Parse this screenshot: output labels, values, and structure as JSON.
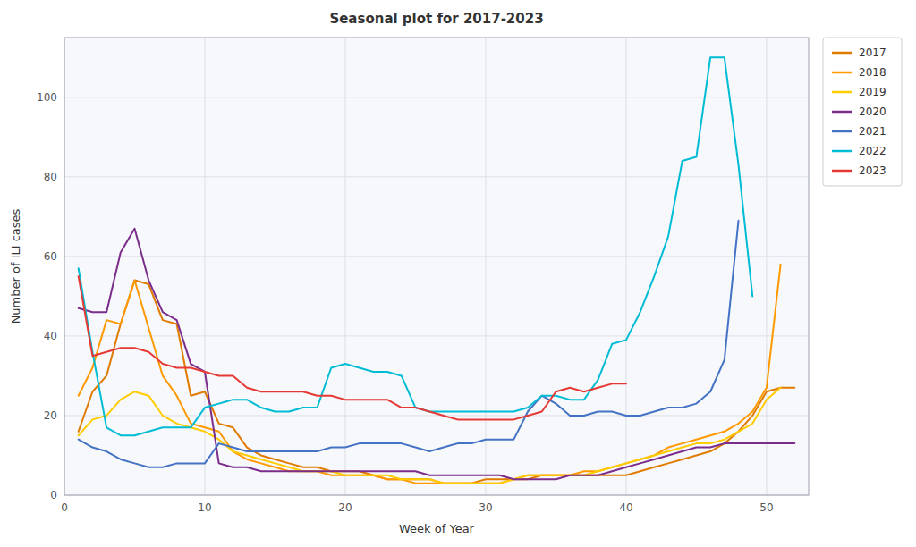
{
  "chart_data": {
    "type": "line",
    "title": "Seasonal plot for 2017-2023",
    "xlabel": "Week of Year",
    "ylabel": "Number of ILI cases",
    "xlim": [
      0,
      53
    ],
    "ylim": [
      0,
      115
    ],
    "xticks": [
      0,
      10,
      20,
      30,
      40,
      50
    ],
    "yticks": [
      0,
      20,
      40,
      60,
      80,
      100
    ],
    "grid": true,
    "legend": "upper right",
    "series": [
      {
        "name": "2017",
        "color": "#e07b00",
        "x": [
          1,
          2,
          3,
          4,
          5,
          6,
          7,
          8,
          9,
          10,
          11,
          12,
          13,
          14,
          15,
          16,
          17,
          18,
          19,
          20,
          21,
          22,
          23,
          24,
          25,
          26,
          27,
          28,
          29,
          30,
          31,
          32,
          33,
          34,
          35,
          36,
          37,
          38,
          39,
          40,
          41,
          42,
          43,
          44,
          45,
          46,
          47,
          48,
          49,
          50,
          51,
          52
        ],
        "values": [
          16,
          26,
          30,
          43,
          54,
          53,
          44,
          43,
          25,
          26,
          18,
          17,
          12,
          10,
          9,
          8,
          7,
          7,
          6,
          6,
          6,
          5,
          4,
          4,
          4,
          4,
          3,
          3,
          3,
          4,
          4,
          4,
          4,
          5,
          5,
          5,
          5,
          5,
          5,
          5,
          6,
          7,
          8,
          9,
          10,
          11,
          13,
          16,
          20,
          26,
          27,
          27
        ]
      },
      {
        "name": "2018",
        "color": "#ff9900",
        "x": [
          1,
          2,
          3,
          4,
          5,
          6,
          7,
          8,
          9,
          10,
          11,
          12,
          13,
          14,
          15,
          16,
          17,
          18,
          19,
          20,
          21,
          22,
          23,
          24,
          25,
          26,
          27,
          28,
          29,
          30,
          31,
          32,
          33,
          34,
          35,
          36,
          37,
          38,
          39,
          40,
          41,
          42,
          43,
          44,
          45,
          46,
          47,
          48,
          49,
          50,
          51
        ],
        "values": [
          25,
          32,
          44,
          43,
          54,
          42,
          30,
          25,
          18,
          17,
          16,
          11,
          9,
          8,
          7,
          6,
          6,
          6,
          5,
          5,
          5,
          5,
          4,
          4,
          3,
          3,
          3,
          3,
          3,
          3,
          3,
          4,
          5,
          5,
          5,
          5,
          6,
          6,
          7,
          8,
          9,
          10,
          12,
          13,
          14,
          15,
          16,
          18,
          21,
          27,
          58
        ]
      },
      {
        "name": "2019",
        "color": "#ffcc00",
        "x": [
          1,
          2,
          3,
          4,
          5,
          6,
          7,
          8,
          9,
          10,
          11,
          12,
          13,
          14,
          15,
          16,
          17,
          18,
          19,
          20,
          21,
          22,
          23,
          24,
          25,
          26,
          27,
          28,
          29,
          30,
          31,
          32,
          33,
          34,
          35,
          36,
          37,
          38,
          39,
          40,
          41,
          42,
          43,
          44,
          45,
          46,
          47,
          48,
          49,
          50,
          51
        ],
        "values": [
          15,
          19,
          20,
          24,
          26,
          25,
          20,
          18,
          17,
          16,
          14,
          11,
          10,
          9,
          8,
          7,
          6,
          6,
          6,
          5,
          5,
          5,
          5,
          4,
          4,
          4,
          3,
          3,
          3,
          3,
          3,
          4,
          5,
          5,
          5,
          5,
          5,
          6,
          7,
          8,
          9,
          10,
          11,
          12,
          13,
          13,
          14,
          16,
          18,
          24,
          27
        ]
      },
      {
        "name": "2020",
        "color": "#7b2d8b",
        "x": [
          1,
          2,
          3,
          4,
          5,
          6,
          7,
          8,
          9,
          10,
          11,
          12,
          13,
          14,
          15,
          16,
          17,
          18,
          19,
          20,
          21,
          22,
          23,
          24,
          25,
          26,
          27,
          28,
          29,
          30,
          31,
          32,
          33,
          34,
          35,
          36,
          37,
          38,
          39,
          40,
          41,
          42,
          43,
          44,
          45,
          46,
          47,
          48,
          49,
          50,
          51,
          52
        ],
        "values": [
          47,
          46,
          46,
          61,
          67,
          54,
          46,
          44,
          33,
          31,
          8,
          7,
          7,
          6,
          6,
          6,
          6,
          6,
          6,
          6,
          6,
          6,
          6,
          6,
          6,
          5,
          5,
          5,
          5,
          5,
          5,
          4,
          4,
          4,
          4,
          5,
          5,
          5,
          6,
          7,
          8,
          9,
          10,
          11,
          12,
          12,
          13,
          13,
          13,
          13,
          13,
          13
        ]
      },
      {
        "name": "2021",
        "color": "#4472c4",
        "x": [
          1,
          2,
          3,
          4,
          5,
          6,
          7,
          8,
          9,
          10,
          11,
          12,
          13,
          14,
          15,
          16,
          17,
          18,
          19,
          20,
          21,
          22,
          23,
          24,
          25,
          26,
          27,
          28,
          29,
          30,
          31,
          32,
          33,
          34,
          35,
          36,
          37,
          38,
          39,
          40,
          41,
          42,
          43,
          44,
          45,
          46,
          47,
          48
        ],
        "values": [
          14,
          12,
          11,
          9,
          8,
          7,
          7,
          8,
          8,
          8,
          13,
          12,
          11,
          11,
          11,
          11,
          11,
          11,
          12,
          12,
          13,
          13,
          13,
          13,
          12,
          11,
          12,
          13,
          13,
          14,
          14,
          14,
          21,
          25,
          23,
          20,
          20,
          21,
          21,
          20,
          20,
          21,
          22,
          22,
          23,
          26,
          34,
          69
        ]
      },
      {
        "name": "2022",
        "color": "#00bcd4",
        "x": [
          1,
          2,
          3,
          4,
          5,
          6,
          7,
          8,
          9,
          10,
          11,
          12,
          13,
          14,
          15,
          16,
          17,
          18,
          19,
          20,
          21,
          22,
          23,
          24,
          25,
          26,
          27,
          28,
          29,
          30,
          31,
          32,
          33,
          34,
          35,
          36,
          37,
          38,
          39,
          40,
          41,
          42,
          43,
          44,
          45,
          46,
          47,
          48,
          49
        ],
        "values": [
          57,
          36,
          17,
          15,
          15,
          16,
          17,
          17,
          17,
          22,
          23,
          24,
          24,
          22,
          21,
          21,
          22,
          22,
          32,
          33,
          32,
          31,
          31,
          30,
          22,
          21,
          21,
          21,
          21,
          21,
          21,
          21,
          22,
          25,
          25,
          24,
          24,
          29,
          38,
          39,
          46,
          55,
          65,
          84,
          85,
          110,
          110,
          83,
          50
        ]
      },
      {
        "name": "2023",
        "color": "#e53935",
        "x": [
          1,
          2,
          3,
          4,
          5,
          6,
          7,
          8,
          9,
          10,
          11,
          12,
          13,
          14,
          15,
          16,
          17,
          18,
          19,
          20,
          21,
          22,
          23,
          24,
          25,
          26,
          27,
          28,
          29,
          30,
          31,
          32,
          33,
          34,
          35,
          36,
          37,
          38,
          39,
          40
        ],
        "values": [
          55,
          35,
          36,
          37,
          37,
          36,
          33,
          32,
          32,
          31,
          30,
          30,
          27,
          26,
          26,
          26,
          26,
          25,
          25,
          24,
          24,
          24,
          24,
          22,
          22,
          21,
          20,
          19,
          19,
          19,
          19,
          19,
          20,
          21,
          26,
          27,
          26,
          27,
          28,
          28
        ]
      }
    ]
  }
}
